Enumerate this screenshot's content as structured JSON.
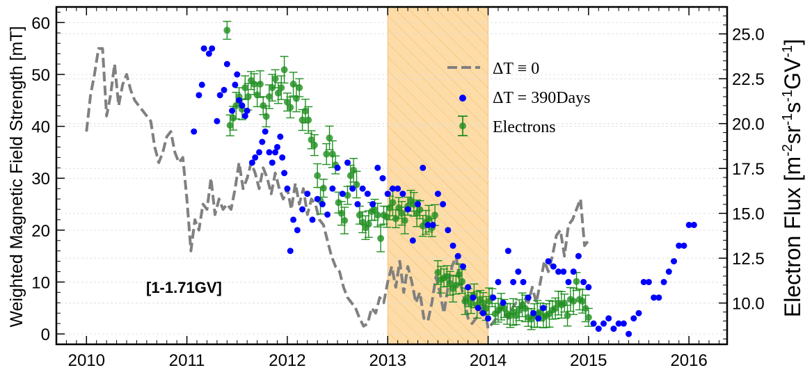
{
  "chart_data": {
    "type": "line",
    "title": "",
    "xlabel": "",
    "ylabel": "Weighted Magnetic Field Strength [mT]",
    "y2label_main": "Electron Flux [m",
    "y2label_sup1": "-2",
    "y2label_mid1": "sr",
    "y2label_sup2": "-1",
    "y2label_mid2": "s",
    "y2label_sup3": "-1",
    "y2label_mid3": "GV",
    "y2label_sup4": "-1",
    "y2label_end": "]",
    "annotation": "[1-1.71GV]",
    "xlim": [
      2009.7,
      2016.38
    ],
    "ylim": [
      -2,
      63
    ],
    "y2lim": [
      7.7,
      26.5
    ],
    "x_ticks": [
      2010,
      2011,
      2012,
      2013,
      2014,
      2015,
      2016
    ],
    "x_tick_labels": [
      "2010",
      "2011",
      "2012",
      "2013",
      "2014",
      "2015",
      "2016"
    ],
    "y_ticks": [
      0,
      10,
      20,
      30,
      40,
      50,
      60
    ],
    "y_tick_labels": [
      "0",
      "10",
      "20",
      "30",
      "40",
      "50",
      "60"
    ],
    "y2_ticks": [
      10.0,
      12.5,
      15.0,
      17.5,
      20.0,
      22.5,
      25.0
    ],
    "y2_tick_labels": [
      "10.0",
      "12.5",
      "15.0",
      "17.5",
      "20.0",
      "22.5",
      "25.0"
    ],
    "shaded_region": {
      "x": [
        2013.0,
        2014.0
      ],
      "color": "#fddca8",
      "hatch_color": "#f7c87a"
    },
    "grid": true,
    "legend_position": "upper-right",
    "colors": {
      "dashed": "#808080",
      "dots": "#0000ff",
      "electrons": "#1f8f1f"
    },
    "series": [
      {
        "name": "ΔT ≡ 0",
        "legend": "ΔT ≡ 0",
        "style": "dashed",
        "axis": "left",
        "x": [
          2010.0,
          2010.04,
          2010.08,
          2010.12,
          2010.16,
          2010.2,
          2010.24,
          2010.28,
          2010.32,
          2010.36,
          2010.4,
          2010.44,
          2010.48,
          2010.52,
          2010.56,
          2010.6,
          2010.64,
          2010.68,
          2010.72,
          2010.76,
          2010.8,
          2010.84,
          2010.88,
          2010.92,
          2010.96,
          2011.0,
          2011.04,
          2011.08,
          2011.12,
          2011.16,
          2011.2,
          2011.24,
          2011.28,
          2011.32,
          2011.36,
          2011.4,
          2011.44,
          2011.48,
          2011.52,
          2011.56,
          2011.6,
          2011.64,
          2011.68,
          2011.72,
          2011.76,
          2011.8,
          2011.84,
          2011.88,
          2011.92,
          2011.96,
          2012.0,
          2012.04,
          2012.08,
          2012.12,
          2012.16,
          2012.2,
          2012.24,
          2012.28,
          2012.32,
          2012.36,
          2012.4,
          2012.44,
          2012.48,
          2012.52,
          2012.56,
          2012.6,
          2012.64,
          2012.68,
          2012.72,
          2012.76,
          2012.8,
          2012.84,
          2012.88,
          2012.92,
          2012.96,
          2013.0,
          2013.04,
          2013.08,
          2013.12,
          2013.16,
          2013.2,
          2013.24,
          2013.28,
          2013.32,
          2013.36,
          2013.4,
          2013.44,
          2013.48,
          2013.52,
          2013.56,
          2013.6,
          2013.64,
          2013.68,
          2013.72,
          2013.76,
          2013.8,
          2013.84,
          2013.88,
          2013.92,
          2013.96,
          2014.0,
          2014.04,
          2014.08,
          2014.12,
          2014.16,
          2014.2,
          2014.24,
          2014.28,
          2014.32,
          2014.36,
          2014.4,
          2014.44,
          2014.48,
          2014.52,
          2014.56,
          2014.6,
          2014.64,
          2014.68,
          2014.72,
          2014.76,
          2014.8,
          2014.84,
          2014.88,
          2014.92,
          2014.96,
          2015.0
        ],
        "y": [
          39,
          46,
          50,
          55,
          55,
          42,
          46,
          52,
          44,
          48,
          50,
          47,
          45,
          44,
          43,
          42,
          41,
          36,
          33,
          35,
          38,
          39,
          35,
          33,
          34,
          26,
          16,
          22,
          20,
          25,
          24,
          30,
          23,
          26,
          24,
          25,
          24,
          28,
          33,
          28,
          30,
          33,
          31,
          28,
          32,
          30,
          27,
          31,
          28,
          26,
          28,
          24,
          29,
          25,
          28,
          23,
          26,
          25,
          22,
          21,
          18,
          15,
          13,
          12,
          9,
          7,
          6,
          5,
          3,
          1.5,
          2,
          5,
          4,
          7,
          6,
          10,
          13,
          9,
          14,
          8,
          13,
          10,
          6,
          8,
          3,
          2.5,
          6,
          11,
          8,
          4,
          9,
          13,
          15,
          10,
          7,
          3,
          2,
          3,
          4,
          6,
          1,
          2,
          3,
          5,
          4,
          3,
          5,
          6,
          5,
          7,
          6,
          9,
          6,
          10,
          14,
          12,
          15,
          19,
          20,
          15,
          21,
          22,
          24,
          26,
          17,
          18
        ]
      },
      {
        "name": "ΔT = 390Days",
        "legend": "ΔT = 390Days",
        "style": "dots",
        "axis": "left",
        "x": [
          2011.07,
          2011.12,
          2011.15,
          2011.17,
          2011.22,
          2011.25,
          2011.3,
          2011.33,
          2011.37,
          2011.4,
          2011.45,
          2011.48,
          2011.5,
          2011.52,
          2011.55,
          2011.58,
          2011.6,
          2011.65,
          2011.68,
          2011.72,
          2011.75,
          2011.78,
          2011.82,
          2011.85,
          2011.88,
          2011.9,
          2011.93,
          2011.95,
          2011.97,
          2012.0,
          2012.03,
          2012.06,
          2012.1,
          2012.15,
          2012.2,
          2012.25,
          2012.3,
          2012.35,
          2012.4,
          2012.45,
          2012.5,
          2012.55,
          2012.6,
          2012.65,
          2012.7,
          2012.75,
          2012.8,
          2012.85,
          2012.9,
          2012.95,
          2013.0,
          2013.05,
          2013.1,
          2013.15,
          2013.2,
          2013.25,
          2013.3,
          2013.35,
          2013.4,
          2013.45,
          2013.5,
          2013.55,
          2013.6,
          2013.65,
          2013.7,
          2013.75,
          2013.8,
          2013.85,
          2013.9,
          2013.95,
          2014.0,
          2014.05,
          2014.1,
          2014.15,
          2014.2,
          2014.25,
          2014.3,
          2014.35,
          2014.4,
          2014.45,
          2014.5,
          2014.55,
          2014.6,
          2014.65,
          2014.7,
          2014.75,
          2014.8,
          2014.85,
          2014.9,
          2014.95,
          2015.0,
          2015.05,
          2015.1,
          2015.15,
          2015.2,
          2015.25,
          2015.3,
          2015.35,
          2015.4,
          2015.45,
          2015.5,
          2015.55,
          2015.6,
          2015.65,
          2015.7,
          2015.75,
          2015.8,
          2015.85,
          2015.9,
          2015.95,
          2016.0,
          2016.05
        ],
        "y": [
          39,
          46,
          48,
          55,
          54,
          55,
          41,
          46,
          47,
          52,
          43,
          48,
          50,
          45,
          44,
          42,
          43,
          33,
          34,
          35,
          37,
          39,
          35,
          33,
          35,
          36,
          38,
          34,
          31,
          28,
          16,
          22,
          20,
          24,
          27,
          22,
          26,
          25,
          23,
          28,
          32,
          27,
          33,
          28,
          25,
          28,
          27,
          25,
          32,
          30,
          27,
          28,
          28,
          27,
          24,
          18,
          25,
          32,
          21,
          21,
          27,
          25,
          20,
          17,
          15,
          13,
          9,
          7,
          5,
          4,
          3,
          7,
          10,
          6,
          16,
          10,
          12,
          10,
          7,
          4,
          3,
          5,
          14,
          13,
          12,
          12,
          10,
          12,
          15,
          10,
          9,
          2,
          1,
          2,
          3,
          1,
          2,
          2,
          0,
          3,
          4,
          10,
          10,
          7,
          7,
          10,
          12,
          14,
          17,
          17,
          21,
          21
        ]
      },
      {
        "name": "Electrons",
        "legend": "Electrons",
        "style": "errorbar",
        "axis": "right",
        "x": [
          2011.4,
          2011.43,
          2011.46,
          2011.49,
          2011.52,
          2011.55,
          2011.58,
          2011.61,
          2011.64,
          2011.67,
          2011.7,
          2011.73,
          2011.76,
          2011.79,
          2011.82,
          2011.85,
          2011.88,
          2011.91,
          2011.94,
          2011.97,
          2012.0,
          2012.03,
          2012.06,
          2012.09,
          2012.12,
          2012.15,
          2012.18,
          2012.21,
          2012.24,
          2012.27,
          2012.3,
          2012.33,
          2012.36,
          2012.39,
          2012.42,
          2012.45,
          2012.48,
          2012.51,
          2012.54,
          2012.57,
          2012.6,
          2012.63,
          2012.66,
          2012.69,
          2012.72,
          2012.75,
          2012.78,
          2012.81,
          2012.84,
          2012.87,
          2012.9,
          2012.93,
          2012.96,
          2012.99,
          2013.02,
          2013.05,
          2013.08,
          2013.11,
          2013.14,
          2013.17,
          2013.2,
          2013.23,
          2013.26,
          2013.29,
          2013.32,
          2013.35,
          2013.38,
          2013.41,
          2013.44,
          2013.47,
          2013.5,
          2013.53,
          2013.56,
          2013.59,
          2013.62,
          2013.65,
          2013.68,
          2013.71,
          2013.74,
          2013.77,
          2013.8,
          2013.83,
          2013.86,
          2013.89,
          2013.92,
          2013.95,
          2013.98,
          2014.01,
          2014.04,
          2014.07,
          2014.1,
          2014.13,
          2014.16,
          2014.19,
          2014.22,
          2014.25,
          2014.28,
          2014.31,
          2014.34,
          2014.37,
          2014.4,
          2014.43,
          2014.46,
          2014.49,
          2014.52,
          2014.55,
          2014.58,
          2014.61,
          2014.64,
          2014.67,
          2014.7,
          2014.73,
          2014.76,
          2014.79,
          2014.82,
          2014.85,
          2014.88,
          2014.91,
          2014.94,
          2014.97,
          2015.0
        ],
        "y": [
          25.2,
          19.9,
          20.3,
          21.0,
          21.5,
          20.8,
          22.0,
          21.5,
          22.4,
          22.2,
          21.6,
          22.2,
          21.0,
          20.4,
          21.5,
          22.0,
          22.5,
          21.7,
          22.0,
          23.0,
          21.2,
          20.9,
          22.2,
          21.4,
          22.0,
          20.2,
          20.7,
          20.2,
          19.1,
          18.8,
          17.1,
          15.7,
          16.4,
          18.3,
          19.2,
          18.3,
          17.7,
          15.6,
          15.0,
          14.6,
          16.0,
          17.1,
          17.4,
          16.6,
          14.9,
          14.5,
          14.2,
          14.4,
          15.1,
          15.2,
          14.9,
          13.6,
          14.9,
          14.8,
          15.3,
          15.6,
          14.7,
          15.3,
          15.0,
          14.6,
          15.4,
          15.7,
          15.5,
          15.0,
          15.2,
          14.3,
          14.5,
          14.7,
          14.2,
          14.9,
          11.7,
          11.3,
          11.4,
          11.5,
          11.1,
          10.8,
          11.0,
          11.6,
          11.2,
          10.1,
          10.3,
          10.0,
          10.4,
          9.9,
          10.2,
          10.0,
          9.7,
          10.1,
          10.3,
          9.4,
          9.6,
          9.8,
          9.7,
          9.4,
          9.3,
          9.5,
          9.3,
          9.6,
          9.9,
          9.7,
          9.2,
          9.1,
          9.3,
          9.4,
          9.5,
          9.2,
          9.3,
          9.4,
          9.6,
          9.7,
          10.0,
          9.9,
          10.0,
          9.3,
          10.2,
          10.1,
          11.2,
          10.2,
          10.1,
          9.7,
          9.2
        ]
      }
    ]
  }
}
